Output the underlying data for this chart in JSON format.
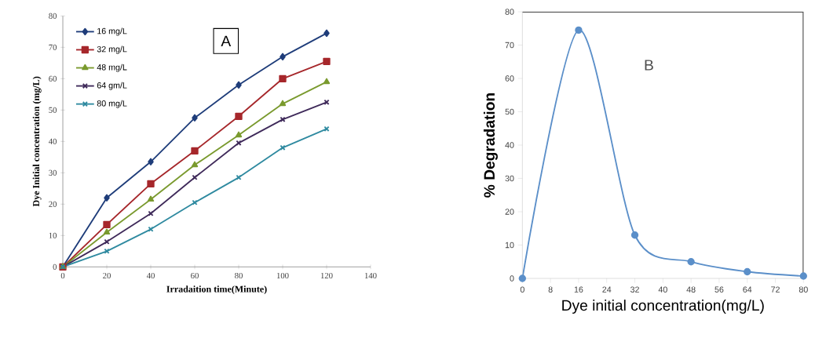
{
  "chart_data": [
    {
      "type": "line",
      "xlabel": "Irradaition time(Minute)",
      "ylabel": "Dye Initial  concentration  (mg/L)",
      "annotations": [
        "A"
      ],
      "x": [
        0,
        20,
        40,
        60,
        80,
        100,
        120
      ],
      "xlim": [
        0,
        140
      ],
      "xticks": [
        0,
        20,
        40,
        60,
        80,
        100,
        120,
        140
      ],
      "ylim": [
        0,
        80
      ],
      "yticks": [
        0,
        10,
        20,
        30,
        40,
        50,
        60,
        70,
        80
      ],
      "legend": "top left",
      "series": [
        {
          "name": "16 mg/L",
          "color": "#1f3d7a",
          "marker": "diamond",
          "values": [
            0,
            22,
            33.5,
            47.5,
            58,
            67,
            74.5
          ]
        },
        {
          "name": "32 mg/L",
          "color": "#a6272b",
          "marker": "square",
          "values": [
            0,
            13.5,
            26.5,
            37,
            48,
            60,
            65.5
          ]
        },
        {
          "name": "48 mg/L",
          "color": "#7a9a2e",
          "marker": "triangle",
          "values": [
            0,
            11,
            21.5,
            32.5,
            42,
            52,
            59
          ]
        },
        {
          "name": "64 gm/L",
          "color": "#3f2a5a",
          "marker": "cross",
          "values": [
            0,
            8,
            17,
            28.5,
            39.5,
            47,
            52.5
          ]
        },
        {
          "name": "80 mg/L",
          "color": "#2f8aa0",
          "marker": "cross",
          "values": [
            0,
            5,
            12,
            20.5,
            28.5,
            38,
            44
          ]
        }
      ]
    },
    {
      "type": "line",
      "xlabel": "Dye initial concentration(mg/L)",
      "ylabel": "% Degradation",
      "annotations": [
        "B"
      ],
      "x": [
        0,
        16,
        32,
        48,
        64,
        80
      ],
      "xlim": [
        0,
        80
      ],
      "xticks": [
        0,
        8,
        16,
        24,
        32,
        40,
        48,
        56,
        64,
        72,
        80
      ],
      "ylim": [
        0,
        80
      ],
      "yticks": [
        0,
        10,
        20,
        30,
        40,
        50,
        60,
        70,
        80
      ],
      "marker": "circle",
      "series": [
        {
          "color": "#5b8fc9",
          "values": [
            0,
            74.5,
            13,
            5,
            2,
            0.7
          ]
        }
      ]
    }
  ]
}
